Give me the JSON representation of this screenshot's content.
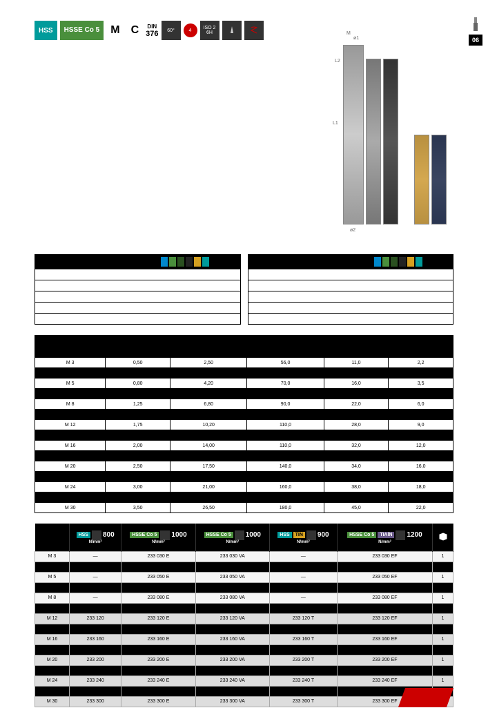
{
  "page_number": "06",
  "header": {
    "hss": "HSS",
    "hsse": "HSSE\nCo 5",
    "m": "M",
    "c": "C",
    "din_label": "DIN",
    "din_num": "376",
    "angle": "60°",
    "iso": "ISO 2\n6H",
    "four": "4"
  },
  "dim_labels": {
    "l1": "L1",
    "d1": "ø1",
    "d2": "ø2",
    "l2": "L2",
    "m": "M"
  },
  "spec_empty_rows": 5,
  "dims": {
    "headers": [
      "",
      "",
      "",
      "",
      "",
      ""
    ],
    "rows": [
      {
        "bg": "white",
        "v": [
          "M  3",
          "0,50",
          "2,50",
          "56,0",
          "11,0",
          "2,2"
        ]
      },
      {
        "bg": "black",
        "v": [
          "",
          "",
          "",
          "",
          "",
          ""
        ]
      },
      {
        "bg": "white",
        "v": [
          "M  5",
          "0,80",
          "4,20",
          "70,0",
          "16,0",
          "3,5"
        ]
      },
      {
        "bg": "black",
        "v": [
          "",
          "",
          "",
          "",
          "",
          ""
        ]
      },
      {
        "bg": "white",
        "v": [
          "M  8",
          "1,25",
          "6,80",
          "90,0",
          "22,0",
          "6,0"
        ]
      },
      {
        "bg": "black",
        "v": [
          "",
          "",
          "",
          "",
          "",
          ""
        ]
      },
      {
        "bg": "white",
        "v": [
          "M 12",
          "1,75",
          "10,20",
          "110,0",
          "28,0",
          "9,0"
        ]
      },
      {
        "bg": "black",
        "v": [
          "",
          "",
          "",
          "",
          "",
          ""
        ]
      },
      {
        "bg": "white",
        "v": [
          "M 16",
          "2,00",
          "14,00",
          "110,0",
          "32,0",
          "12,0"
        ]
      },
      {
        "bg": "black",
        "v": [
          "",
          "",
          "",
          "",
          "",
          ""
        ]
      },
      {
        "bg": "white",
        "v": [
          "M 20",
          "2,50",
          "17,50",
          "140,0",
          "34,0",
          "16,0"
        ]
      },
      {
        "bg": "black",
        "v": [
          "",
          "",
          "",
          "",
          "",
          ""
        ]
      },
      {
        "bg": "white",
        "v": [
          "M 24",
          "3,00",
          "21,00",
          "160,0",
          "38,0",
          "18,0"
        ]
      },
      {
        "bg": "black",
        "v": [
          "",
          "",
          "",
          "",
          "",
          ""
        ]
      },
      {
        "bg": "white",
        "v": [
          "M 30",
          "3,50",
          "26,50",
          "180,0",
          "45,0",
          "22,0"
        ]
      }
    ]
  },
  "order": {
    "cols": [
      {
        "mat": "HSS",
        "matClass": "hss",
        "val": "800",
        "unit": "N/mm²"
      },
      {
        "mat": "HSSE Co 5",
        "matClass": "hsse",
        "val": "1000",
        "unit": "N/mm²"
      },
      {
        "mat": "HSSE Co 5",
        "matClass": "hsse",
        "val": "1000",
        "unit": "N/mm²"
      },
      {
        "mat": "HSS",
        "matClass": "hss",
        "coat": "TIN",
        "coatClass": "tin",
        "val": "900",
        "unit": "N/mm²"
      },
      {
        "mat": "HSSE Co 5",
        "matClass": "hsse",
        "coat": "TiAlN",
        "coatClass": "tialn",
        "val": "1200",
        "unit": "N/mm²"
      }
    ],
    "rows": [
      {
        "bg": "light",
        "v": [
          "M  3",
          "—",
          "233 030 E",
          "233 030 VA",
          "—",
          "233 030 EF",
          "1"
        ]
      },
      {
        "bg": "black",
        "v": [
          "",
          "",
          "",
          "",
          "",
          "",
          ""
        ]
      },
      {
        "bg": "light",
        "v": [
          "M  5",
          "—",
          "233 050 E",
          "233 050 VA",
          "—",
          "233 050 EF",
          "1"
        ]
      },
      {
        "bg": "black",
        "v": [
          "",
          "",
          "",
          "",
          "",
          "",
          ""
        ]
      },
      {
        "bg": "light",
        "v": [
          "M  8",
          "—",
          "233 080 E",
          "233 080 VA",
          "—",
          "233 080 EF",
          "1"
        ]
      },
      {
        "bg": "black",
        "v": [
          "",
          "",
          "",
          "",
          "",
          "",
          ""
        ]
      },
      {
        "bg": "gray",
        "v": [
          "M 12",
          "233 120",
          "233 120 E",
          "233 120 VA",
          "233 120 T",
          "233 120 EF",
          "1"
        ]
      },
      {
        "bg": "black",
        "v": [
          "",
          "",
          "",
          "",
          "",
          "",
          ""
        ]
      },
      {
        "bg": "gray",
        "v": [
          "M 16",
          "233 160",
          "233 160 E",
          "233 160 VA",
          "233 160 T",
          "233 160 EF",
          "1"
        ]
      },
      {
        "bg": "black",
        "v": [
          "",
          "",
          "",
          "",
          "",
          "",
          ""
        ]
      },
      {
        "bg": "gray",
        "v": [
          "M 20",
          "233 200",
          "233 200 E",
          "233 200 VA",
          "233 200 T",
          "233 200 EF",
          "1"
        ]
      },
      {
        "bg": "black",
        "v": [
          "",
          "",
          "",
          "",
          "",
          "",
          ""
        ]
      },
      {
        "bg": "gray",
        "v": [
          "M 24",
          "233 240",
          "233 240 E",
          "233 240 VA",
          "233 240 T",
          "233 240 EF",
          "1"
        ]
      },
      {
        "bg": "black",
        "v": [
          "",
          "",
          "",
          "",
          "",
          "",
          ""
        ]
      },
      {
        "bg": "gray",
        "v": [
          "M 30",
          "233 300",
          "233 300 E",
          "233 300 VA",
          "233 300 T",
          "233 300 EF",
          "1"
        ]
      }
    ]
  }
}
